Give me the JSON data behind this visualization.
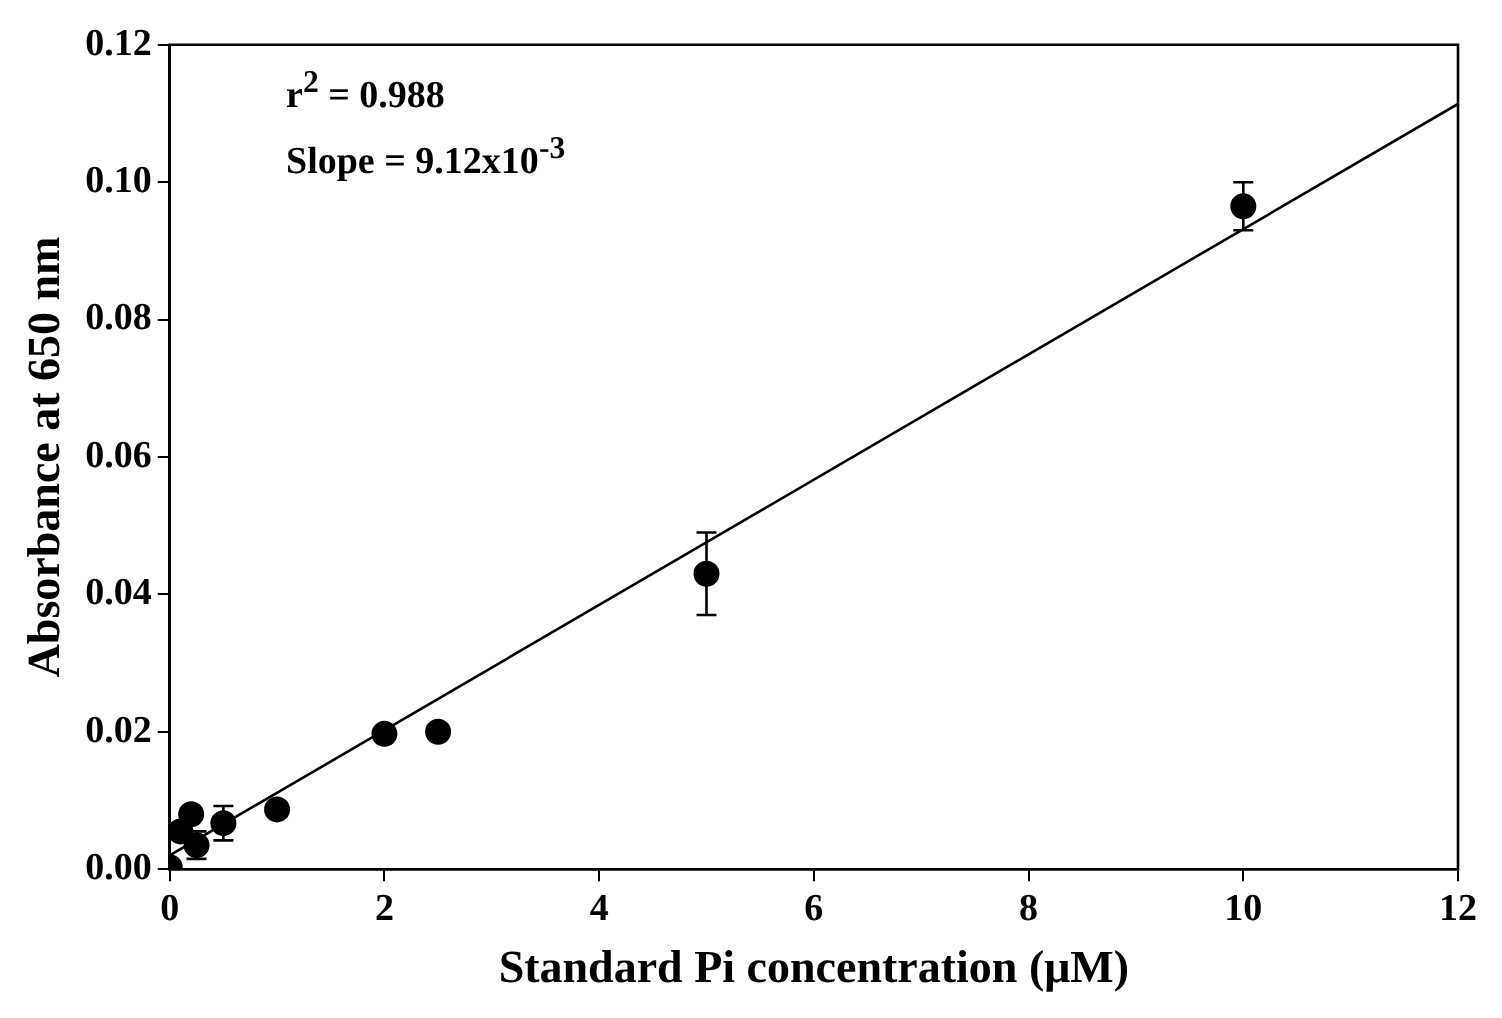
{
  "chart_data": {
    "type": "scatter",
    "xlabel": "Standard Pi concentration (μM)",
    "ylabel": "Absorbance at 650 nm",
    "annotations": [
      "r$^{2}$ = 0.988",
      "Slope = 9.12x10$^{-3}$"
    ],
    "xlim": [
      0,
      12
    ],
    "xticks": [
      0,
      2,
      4,
      6,
      8,
      10,
      12
    ],
    "ylim": [
      0,
      0.12
    ],
    "yticks": [
      {
        "value": 0,
        "label": "0.00"
      },
      {
        "value": 0.02,
        "label": "0.02"
      },
      {
        "value": 0.04,
        "label": "0.04"
      },
      {
        "value": 0.06,
        "label": "0.06"
      },
      {
        "value": 0.08,
        "label": "0.08"
      },
      {
        "value": 0.1,
        "label": "0.10"
      },
      {
        "value": 0.12,
        "label": "0.12"
      }
    ],
    "grid": false,
    "legend": false,
    "series": [
      {
        "type": "scatter",
        "color": "#000000",
        "marker": "circle",
        "x": [
          0,
          0.1,
          0.2,
          0.25,
          0.5,
          1,
          2,
          2.5,
          5,
          10
        ],
        "values": [
          0.0003,
          0.0055,
          0.008,
          0.0035,
          0.0067,
          0.0087,
          0.0197,
          0.02,
          0.043,
          0.0965
        ],
        "errors": [
          null,
          null,
          null,
          0.002,
          0.0025,
          null,
          null,
          null,
          0.006,
          0.0035
        ]
      },
      {
        "type": "line",
        "color": "#000000",
        "marker": "none",
        "x": [
          0,
          12
        ],
        "values": [
          0.002,
          0.1114
        ]
      }
    ]
  }
}
